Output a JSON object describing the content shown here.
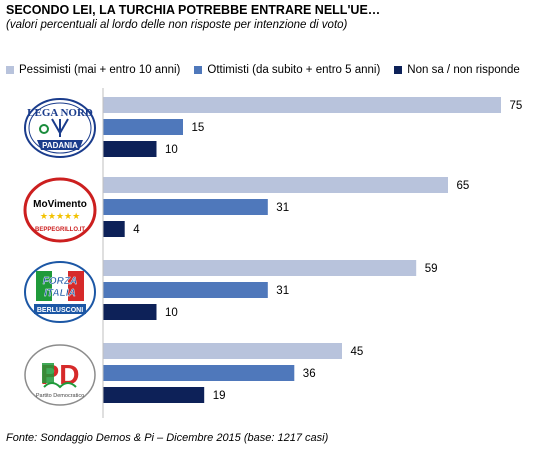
{
  "chart_data": {
    "type": "bar",
    "orientation": "horizontal",
    "title": "SECONDO LEI, LA TURCHIA POTREBBE ENTRARE NELL'UE…",
    "subtitle": "(valori percentuali al lordo delle non risposte per intenzione di voto)",
    "categories": [
      "Lega Nord",
      "Movimento 5 Stelle",
      "Forza Italia",
      "Partito Democratico"
    ],
    "series": [
      {
        "name": "Pessimisti (mai + entro 10 anni)",
        "values": [
          75,
          65,
          59,
          45
        ],
        "color": "#b8c3dc"
      },
      {
        "name": "Ottimisti (da subito + entro 5 anni)",
        "values": [
          15,
          31,
          31,
          36
        ],
        "color": "#4f78bb"
      },
      {
        "name": "Non sa / non risponde",
        "values": [
          10,
          4,
          10,
          19
        ],
        "color": "#0d2158"
      }
    ],
    "xlim": [
      0,
      80
    ],
    "grid": false,
    "legend_position": "top"
  },
  "logos": [
    {
      "name": "lega-nord-logo",
      "text_top": "LEGA NORD",
      "text_bottom": "PADANIA"
    },
    {
      "name": "movimento-5-stelle-logo",
      "text_top": "MoVimento",
      "stars": "★★★★★",
      "text_bottom": "BEPPEGRILLO.IT"
    },
    {
      "name": "forza-italia-logo",
      "text_top": "FORZA",
      "text_mid": "ITALIA",
      "text_bottom": "BERLUSCONI"
    },
    {
      "name": "partito-democratico-logo",
      "text_top": "PD",
      "text_bottom": "Partito Democratico"
    }
  ],
  "source": "Fonte: Sondaggio Demos & Pi – Dicembre 2015 (base: 1217 casi)"
}
